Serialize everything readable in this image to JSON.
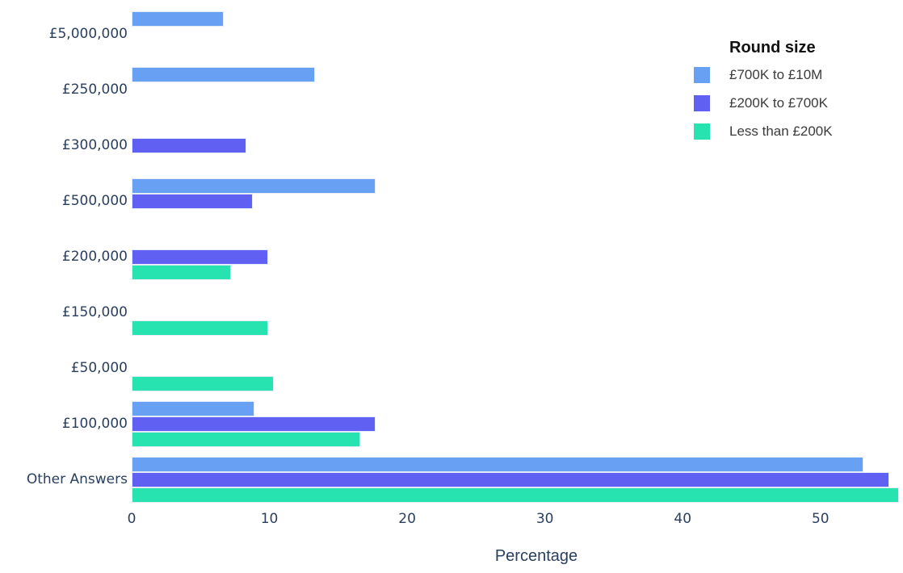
{
  "chart_data": {
    "type": "bar",
    "orientation": "horizontal",
    "title": "",
    "xlabel": "Percentage",
    "ylabel": "",
    "xlim": [
      0,
      55.7
    ],
    "xticks": [
      0,
      10,
      20,
      30,
      40,
      50
    ],
    "grid": false,
    "legend_title": "Round size",
    "legend_position": "top-right",
    "categories": [
      "£5,000,000",
      "£250,000",
      "£300,000",
      "£500,000",
      "£200,000",
      "£150,000",
      "£50,000",
      "£100,000",
      "Other Answers"
    ],
    "series": [
      {
        "name": "£700K to £10M",
        "color": "#68a0f4",
        "values": [
          6.7,
          13.3,
          null,
          17.7,
          null,
          null,
          null,
          8.9,
          53.1
        ]
      },
      {
        "name": "£200K to £700K",
        "color": "#6060f2",
        "values": [
          null,
          null,
          8.3,
          8.8,
          9.9,
          null,
          null,
          17.7,
          55.0
        ]
      },
      {
        "name": "Less than £200K",
        "color": "#26e3af",
        "values": [
          null,
          null,
          null,
          null,
          7.2,
          9.9,
          10.3,
          16.6,
          55.7
        ]
      }
    ],
    "text_color": "#2a3f5f"
  }
}
